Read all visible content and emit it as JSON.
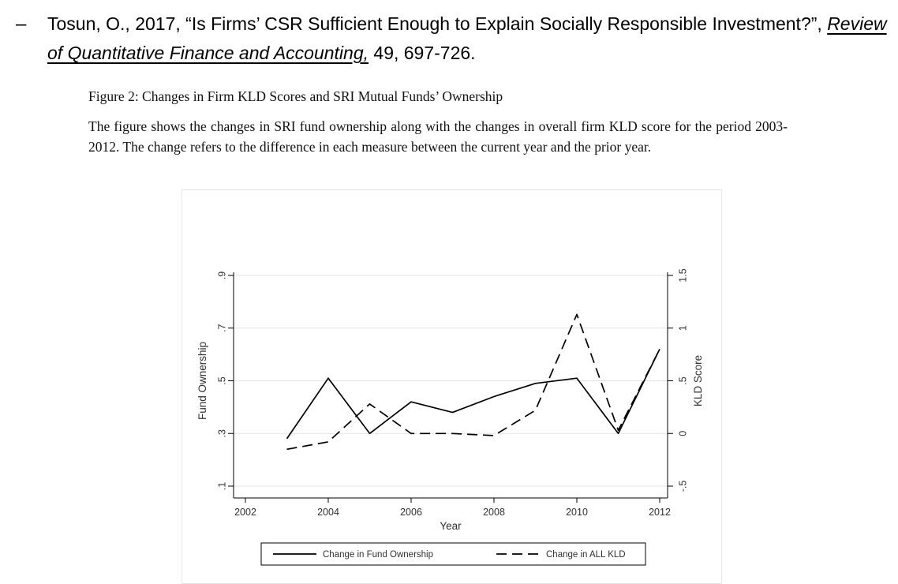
{
  "citation": {
    "bullet": "–",
    "text_before": "Tosun, O., 2017, “Is Firms’ CSR Sufficient Enough to Explain Socially Responsible Investment?”, ",
    "journal": "Review of Quantitative Finance and Accounting,",
    "text_after": " 49, 697-726."
  },
  "figure": {
    "title": "Figure 2: Changes in Firm KLD Scores and SRI Mutual Funds’ Ownership",
    "caption": "The figure shows the changes in SRI fund ownership along with the changes in overall firm KLD score for the period 2003-2012. The change refers to the difference in each measure between the current year and the prior year."
  },
  "chart_data": {
    "type": "line",
    "x": [
      2003,
      2004,
      2005,
      2006,
      2007,
      2008,
      2009,
      2010,
      2011,
      2012
    ],
    "series": [
      {
        "name": "Change in Fund Ownership",
        "axis": "left",
        "style": "solid",
        "values": [
          0.28,
          0.51,
          0.3,
          0.42,
          0.38,
          0.44,
          0.49,
          0.51,
          0.3,
          0.62
        ]
      },
      {
        "name": "Change in ALL KLD",
        "axis": "right",
        "style": "dashed",
        "values": [
          -0.15,
          -0.08,
          0.28,
          0.0,
          0.0,
          -0.02,
          0.22,
          1.13,
          0.03,
          0.8
        ]
      }
    ],
    "xlabel": "Year",
    "ylabel_left": "Fund Ownership",
    "ylabel_right": "KLD Score",
    "xticks": [
      2002,
      2004,
      2006,
      2008,
      2010,
      2012
    ],
    "yticks_left": [
      ".1",
      ".3",
      ".5",
      ".7",
      ".9"
    ],
    "yticks_right": [
      "-.5",
      "0",
      ".5",
      "1",
      "1.5"
    ],
    "ylim_left": [
      0.1,
      0.9
    ],
    "ylim_right": [
      -0.5,
      1.5
    ],
    "xlim": [
      2001.7,
      2012.3
    ],
    "grid": true,
    "legend_position": "bottom"
  }
}
